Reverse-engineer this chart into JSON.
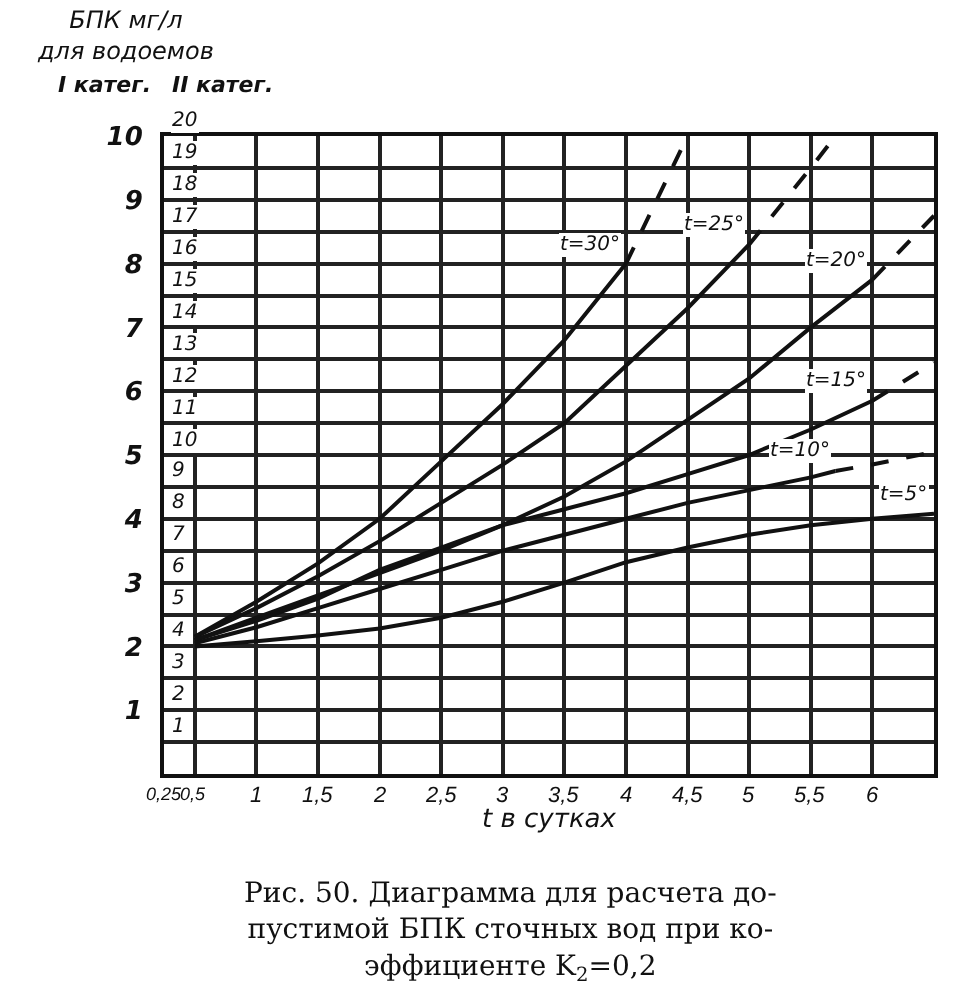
{
  "chart_data": {
    "type": "line",
    "title": "БПК мг/л\nдля водоемов",
    "ylabel": "I катег.",
    "y2label": "II катег.",
    "xlabel": "t в сутках",
    "xlim": [
      0.25,
      6.5
    ],
    "xticks": [
      {
        "value": 0.25,
        "label": "0,25"
      },
      {
        "value": 0.5,
        "label": "0,5"
      },
      1,
      {
        "value": 1.5,
        "label": "1,5"
      },
      2,
      {
        "value": 2.5,
        "label": "2,5"
      },
      3,
      {
        "value": 3.5,
        "label": "3,5"
      },
      4,
      {
        "value": 4.5,
        "label": "4,5"
      },
      5,
      {
        "value": 5.5,
        "label": "5,5"
      },
      6
    ],
    "ylim": [
      0,
      10
    ],
    "yticks": [
      1,
      2,
      3,
      4,
      5,
      6,
      7,
      8,
      9,
      10
    ],
    "y2lim": [
      0,
      20
    ],
    "y2ticks": [
      1,
      2,
      3,
      4,
      5,
      6,
      7,
      8,
      9,
      10,
      11,
      12,
      13,
      14,
      15,
      16,
      17,
      18,
      19,
      20
    ],
    "grid": true,
    "legend": false,
    "marker": "none",
    "series": [
      {
        "name": "t=30°",
        "color": "#111111",
        "line_style": "solid",
        "x": [
          0.5,
          1,
          1.5,
          2,
          2.5,
          3,
          3.5,
          4
        ],
        "values": [
          2.15,
          2.7,
          3.3,
          4.0,
          4.9,
          5.8,
          6.8,
          8.0
        ]
      },
      {
        "color": "#111111",
        "line_style": "dashed",
        "x": [
          4,
          4.5
        ],
        "values": [
          8.0,
          10
        ]
      },
      {
        "name": "t=25°",
        "color": "#111111",
        "line_style": "solid",
        "x": [
          0.5,
          1,
          1.5,
          2,
          2.5,
          3,
          3.5,
          4,
          4.5,
          5
        ],
        "values": [
          2.15,
          2.6,
          3.1,
          3.65,
          4.25,
          4.85,
          5.5,
          6.4,
          7.3,
          8.3
        ]
      },
      {
        "color": "#111111",
        "line_style": "dashed",
        "x": [
          5,
          5.5,
          5.7
        ],
        "values": [
          8.3,
          9.5,
          10
        ]
      },
      {
        "name": "t=20°",
        "color": "#111111",
        "line_style": "solid",
        "x": [
          0.5,
          1,
          1.5,
          2,
          2.5,
          3,
          3.5,
          4,
          4.5,
          5,
          5.5,
          6
        ],
        "values": [
          2.1,
          2.45,
          2.8,
          3.15,
          3.5,
          3.9,
          4.35,
          4.9,
          5.55,
          6.2,
          7.0,
          7.75
        ]
      },
      {
        "color": "#111111",
        "line_style": "dashed",
        "x": [
          6,
          6.5
        ],
        "values": [
          7.75,
          8.75
        ]
      },
      {
        "name": "t=15°",
        "color": "#111111",
        "line_style": "solid",
        "x": [
          0.5,
          1,
          1.5,
          2,
          2.5,
          3,
          3.5,
          4,
          4.5,
          5,
          5.5,
          6
        ],
        "values": [
          2.1,
          2.4,
          2.75,
          3.2,
          3.55,
          3.9,
          4.15,
          4.4,
          4.7,
          5.0,
          5.4,
          5.85
        ]
      },
      {
        "color": "#111111",
        "line_style": "dashed",
        "x": [
          6,
          6.5
        ],
        "values": [
          5.85,
          6.45
        ]
      },
      {
        "name": "t=10°",
        "color": "#111111",
        "line_style": "solid",
        "x": [
          0.5,
          1,
          1.5,
          2,
          2.5,
          3,
          3.5,
          4,
          4.5,
          5,
          5.5,
          5.7
        ],
        "values": [
          2.05,
          2.3,
          2.6,
          2.9,
          3.2,
          3.5,
          3.75,
          4.0,
          4.25,
          4.45,
          4.65,
          4.75
        ]
      },
      {
        "color": "#111111",
        "line_style": "dashed",
        "x": [
          5.7,
          6,
          6.5
        ],
        "values": [
          4.75,
          4.85,
          5.05
        ]
      },
      {
        "name": "t=5°",
        "color": "#111111",
        "line_style": "solid",
        "x": [
          0.5,
          1,
          1.5,
          2,
          2.5,
          3,
          3.5,
          4,
          4.5,
          5,
          5.5,
          6,
          6.5
        ],
        "values": [
          2.0,
          2.08,
          2.17,
          2.28,
          2.45,
          2.7,
          3.0,
          3.32,
          3.55,
          3.75,
          3.9,
          4.0,
          4.08
        ]
      }
    ],
    "annotations": [
      "Рис. 50. Диаграмма для расчета до-\nпустимой БПК сточных вод при ко-\nэффициенте K$_{2}$=0,2"
    ]
  }
}
